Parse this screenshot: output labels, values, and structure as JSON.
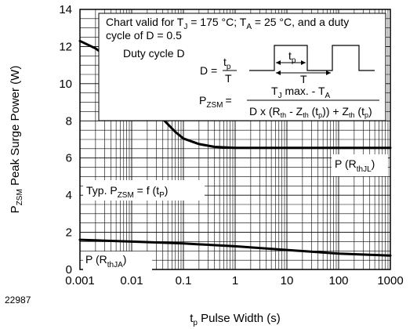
{
  "figure_id": "22987",
  "chart_data": {
    "type": "line",
    "xscale": "log",
    "xlabel_main": "t",
    "xlabel_sub": "p",
    "xlabel_rest": " Pulse Width (s)",
    "ylabel_main": "P",
    "ylabel_sub": "ZSM",
    "ylabel_rest": " Peak Surge Power (W)",
    "xlim": [
      0.001,
      1000
    ],
    "ylim": [
      0,
      14
    ],
    "x_ticks": [
      "0.001",
      "0.01",
      "0.1",
      "1",
      "10",
      "100",
      "1000"
    ],
    "y_ticks": [
      "0",
      "2",
      "4",
      "6",
      "8",
      "10",
      "12",
      "14"
    ],
    "grid": true,
    "series": [
      {
        "name": "P (RthJL)",
        "color": "#000000",
        "x": [
          0.001,
          0.002,
          0.004,
          0.007,
          0.01,
          0.02,
          0.04,
          0.07,
          0.1,
          0.2,
          0.4,
          0.7,
          1,
          3,
          10,
          100,
          1000
        ],
        "y": [
          12.3,
          11.9,
          11.3,
          10.6,
          10.1,
          9.1,
          8.1,
          7.4,
          7.05,
          6.75,
          6.6,
          6.57,
          6.55,
          6.55,
          6.55,
          6.55,
          6.55
        ]
      },
      {
        "name": "P (RthJA)",
        "color": "#000000",
        "x": [
          0.001,
          0.01,
          0.1,
          1,
          10,
          100,
          1000
        ],
        "y": [
          1.6,
          1.5,
          1.4,
          1.25,
          1.05,
          0.85,
          0.75
        ]
      }
    ],
    "annotations": {
      "validity_line1": "Chart valid for T",
      "validity_sub1": "J",
      "validity_mid1": " = 175 °C; T",
      "validity_sub2": "A",
      "validity_mid2": " = 25 °C, and a duty",
      "validity_line2": "cycle of D = 0.5",
      "duty_cycle": "Duty cycle D",
      "d_eq": "D =",
      "frac_top": "t",
      "frac_top_sub": "p",
      "frac_bottom": "T",
      "pulse_tp": "t",
      "pulse_tp_sub": "p",
      "pulse_T": "T",
      "formula_lhs": "P",
      "formula_lhs_sub": "ZSM",
      "formula_eq": "=",
      "formula_num": "T",
      "formula_num_sub1": "J",
      "formula_num_mid": " max. - T",
      "formula_num_sub2": "A",
      "formula_den_a": "D x (R",
      "formula_den_sub_th1": "th",
      "formula_den_b": " - Z",
      "formula_den_sub_th2": "th",
      "formula_den_c": " (t",
      "formula_den_sub_p1": "p",
      "formula_den_d": ")) + Z",
      "formula_den_sub_th3": "th",
      "formula_den_e": " (t",
      "formula_den_sub_p2": "p",
      "formula_den_f": ")",
      "typ_a": "Typ. P",
      "typ_sub": "ZSM",
      "typ_b": " = f (t",
      "typ_sub2": "P",
      "typ_c": ")",
      "rthjl_a": "P (R",
      "rthjl_sub": "thJL",
      "rthjl_c": ")",
      "rthja_a": "P (R",
      "rthja_sub": "thJA",
      "rthja_c": ")"
    }
  }
}
